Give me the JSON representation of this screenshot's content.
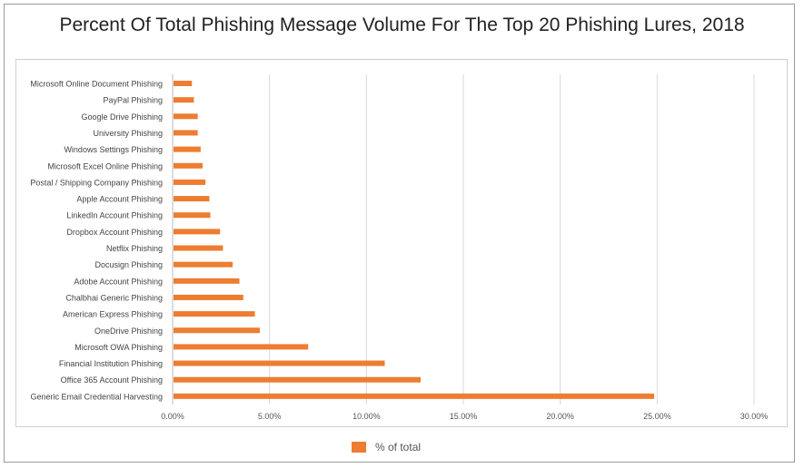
{
  "chart_data": {
    "type": "bar",
    "orientation": "horizontal",
    "title": "Percent Of Total Phishing Message Volume For The Top 20 Phishing Lures, 2018",
    "xlabel": "",
    "ylabel": "",
    "xlim": [
      0,
      30
    ],
    "x_ticks": [
      "0.00%",
      "5.00%",
      "10.00%",
      "15.00%",
      "20.00%",
      "25.00%",
      "30.00%"
    ],
    "grid": true,
    "legend_position": "bottom",
    "color": "#ed7d31",
    "series": [
      {
        "name": "% of total"
      }
    ],
    "categories": [
      "Microsoft Online Document Phishing",
      "PayPal Phishing",
      "Google Drive Phishing",
      "University Phishing",
      "Windows Settings Phishing",
      "Microsoft Excel Online Phishing",
      "Postal / Shipping Company Phishing",
      "Apple Account Phishing",
      "LinkedIn Account Phishing",
      "Dropbox Account Phishing",
      "Netflix Phishing",
      "Docusign Phishing",
      "Adobe Account Phishing",
      "Chalbhai Generic Phishing",
      "American Express Phishing",
      "OneDrive Phishing",
      "Microsoft OWA Phishing",
      "Financial Institution Phishing",
      "Office 365 Account Phishing",
      "Generic Email Credential Harvesting"
    ],
    "values": [
      0.95,
      1.05,
      1.25,
      1.25,
      1.4,
      1.5,
      1.65,
      1.85,
      1.9,
      2.4,
      2.55,
      3.05,
      3.4,
      3.6,
      4.2,
      4.45,
      6.95,
      10.9,
      12.75,
      24.8
    ]
  }
}
